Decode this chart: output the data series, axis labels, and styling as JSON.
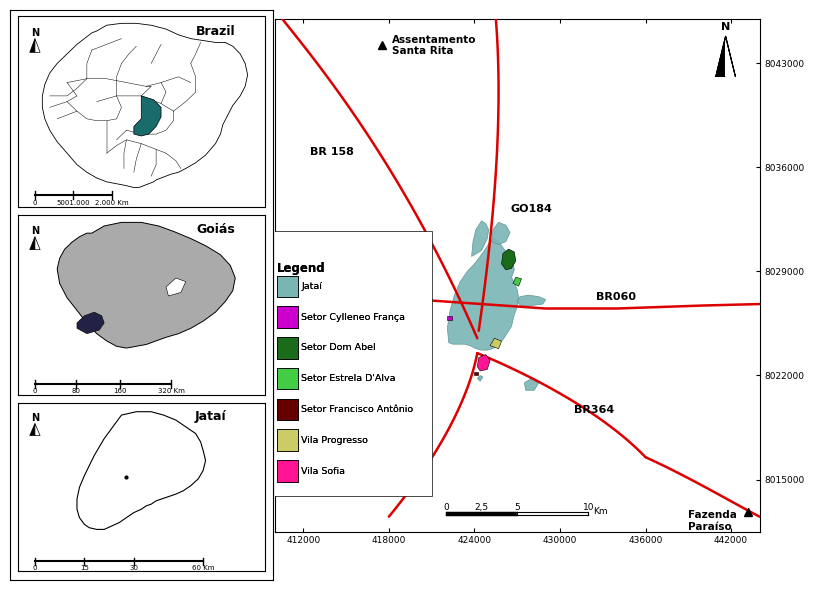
{
  "background_color": "#ffffff",
  "brazil_label": "Brazil",
  "goias_label": "Goiás",
  "jatai_label": "Jataí",
  "legend_title": "Legend",
  "legend_items": [
    {
      "label": "Jataí",
      "color": "#7ab5b5"
    },
    {
      "label": "Setor Cylleneo França",
      "color": "#cc00cc"
    },
    {
      "label": "Setor Dom Abel",
      "color": "#1a6b1a"
    },
    {
      "label": "Setor Estrela D'Alva",
      "color": "#44cc44"
    },
    {
      "label": "Setor Francisco Antônio",
      "color": "#660000"
    },
    {
      "label": "Vila Progresso",
      "color": "#cccc66"
    },
    {
      "label": "Vila Sofia",
      "color": "#ff1493"
    }
  ],
  "road_color": "#dd0000",
  "x_ticks": [
    412000,
    418000,
    424000,
    430000,
    436000,
    442000
  ],
  "y_ticks": [
    8015000,
    8022000,
    8029000,
    8036000,
    8043000
  ],
  "xlim": [
    410000,
    444000
  ],
  "ylim": [
    8011500,
    8046000
  ]
}
